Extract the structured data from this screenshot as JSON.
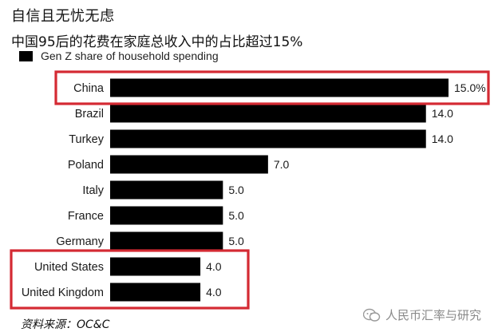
{
  "headline": "自信且无忧无虑",
  "chart_data": {
    "type": "bar",
    "orientation": "horizontal",
    "title": "中国95后的花费在家庭总收入中的占比超过15%",
    "legend": [
      "Gen Z share of household spending"
    ],
    "categories": [
      "China",
      "Brazil",
      "Turkey",
      "Poland",
      "Italy",
      "France",
      "Germany",
      "United States",
      "United Kingdom"
    ],
    "series": [
      {
        "name": "Gen Z share of household spending",
        "values": [
          15.0,
          14.0,
          14.0,
          7.0,
          5.0,
          5.0,
          5.0,
          4.0,
          4.0
        ]
      }
    ],
    "value_labels": [
      "15.0%",
      "14.0",
      "14.0",
      "7.0",
      "5.0",
      "5.0",
      "5.0",
      "4.0",
      "4.0"
    ],
    "highlighted": [
      "China",
      "United States",
      "United Kingdom"
    ],
    "xlim": [
      0,
      15
    ],
    "grid": false,
    "legend_position": "top-left"
  },
  "source": "资料来源：OC&C",
  "watermark": "人民币汇率与研究",
  "colors": {
    "bar": "#000000",
    "highlight_box": "#d42a33",
    "text": "#111111"
  }
}
